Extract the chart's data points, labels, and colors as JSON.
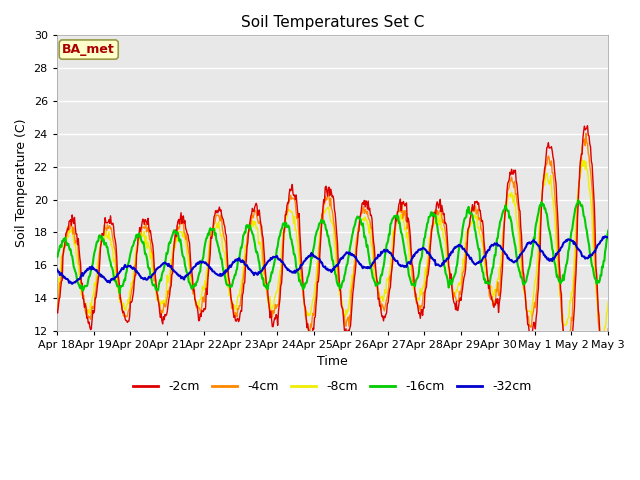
{
  "title": "Soil Temperatures Set C",
  "xlabel": "Time",
  "ylabel": "Soil Temperature (C)",
  "ylim": [
    12,
    30
  ],
  "xlim": [
    0,
    15
  ],
  "legend_labels": [
    "-2cm",
    "-4cm",
    "-8cm",
    "-16cm",
    "-32cm"
  ],
  "legend_colors": [
    "#dd0000",
    "#ff8800",
    "#eeee00",
    "#00cc00",
    "#0000cc"
  ],
  "annotation_text": "BA_met",
  "tick_labels": [
    "Apr 18",
    "Apr 19",
    "Apr 20",
    "Apr 21",
    "Apr 22",
    "Apr 23",
    "Apr 24",
    "Apr 25",
    "Apr 26",
    "Apr 27",
    "Apr 28",
    "Apr 29",
    "Apr 30",
    "May 1",
    "May 2",
    "May 3"
  ],
  "tick_positions": [
    0,
    1,
    2,
    3,
    4,
    5,
    6,
    7,
    8,
    9,
    10,
    11,
    12,
    13,
    14,
    15
  ],
  "yticks": [
    12,
    14,
    16,
    18,
    20,
    22,
    24,
    26,
    28,
    30
  ],
  "figsize": [
    6.4,
    4.8
  ],
  "dpi": 100
}
